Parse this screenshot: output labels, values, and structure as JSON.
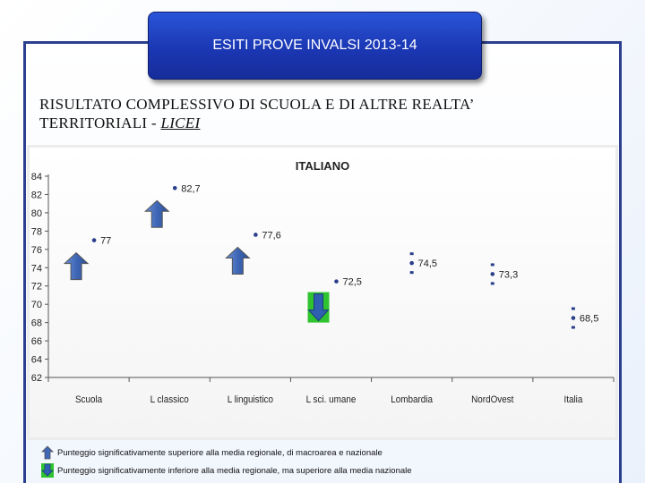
{
  "header": {
    "title": "ESITI PROVE INVALSI 2013-14"
  },
  "heading": {
    "line1": "RISULTATO COMPLESSIVO DI SCUOLA E DI ALTRE REALTA’",
    "line2_prefix": "TERRITORIALI - ",
    "line2_link": "LICEI"
  },
  "colors": {
    "up_arrow": "#3f67b6",
    "down_arrow": "#2f5fb0",
    "down_bg": "#2fc42f",
    "title_bg": "#1f44c4"
  },
  "chart_data": {
    "type": "scatter",
    "title": "ITALIANO",
    "categories": [
      "Scuola",
      "L classico",
      "L linguistico",
      "L sci. umane",
      "Lombardia",
      "NordOvest",
      "Italia"
    ],
    "values": [
      77,
      82.7,
      77.6,
      72.5,
      74.5,
      73.3,
      68.5
    ],
    "value_labels": [
      "77",
      "82,7",
      "77,6",
      "72,5",
      "74,5",
      "73,3",
      "68,5"
    ],
    "ylim": [
      62,
      84
    ],
    "yticks": [
      62,
      64,
      66,
      68,
      70,
      72,
      74,
      76,
      78,
      80,
      82,
      84
    ],
    "markers": [
      "up",
      "up",
      "up",
      "down",
      "none",
      "none",
      "none"
    ],
    "grid": false
  },
  "legend": {
    "up_text": "Punteggio significativamente superiore alla media regionale, di macroarea e nazionale",
    "down_text": "Punteggio significativamente inferiore alla media regionale, ma superiore alla media nazionale"
  }
}
